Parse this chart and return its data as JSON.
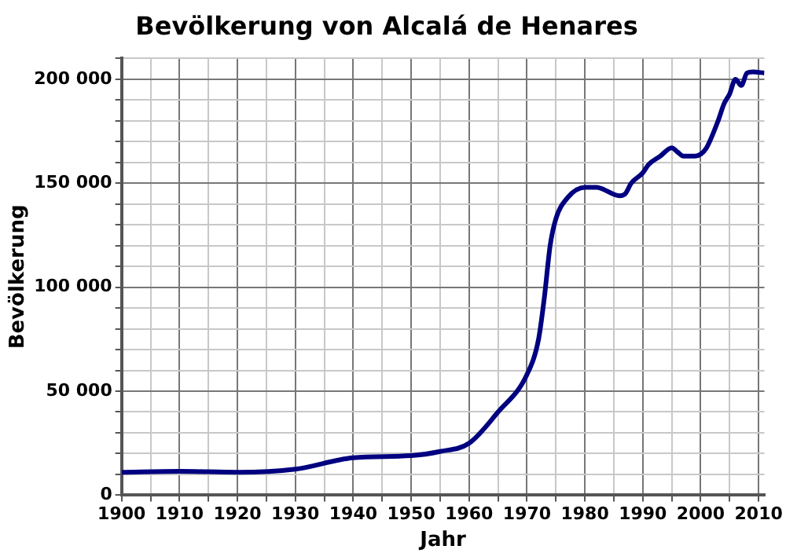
{
  "chart_data": {
    "type": "line",
    "title": "Bevölkerung von Alcalá de Henares",
    "xlabel": "Jahr",
    "ylabel": "Bevölkerung",
    "x": [
      1900,
      1910,
      1920,
      1930,
      1940,
      1950,
      1955,
      1960,
      1965,
      1970,
      1972,
      1973,
      1974,
      1975,
      1977,
      1980,
      1982,
      1986,
      1987,
      1988,
      1990,
      1991,
      1993,
      1995,
      1996,
      1997,
      1999,
      2000,
      2001,
      2003,
      2004,
      2005,
      2006,
      2007,
      2008,
      2009,
      2011
    ],
    "series": [
      {
        "color": "#000080",
        "values": [
          11000,
          11500,
          11000,
          12500,
          18000,
          19000,
          21000,
          25000,
          40000,
          58000,
          75000,
          95000,
          120000,
          133000,
          143000,
          148000,
          148000,
          144000,
          145000,
          150000,
          155000,
          159000,
          163000,
          167000,
          165000,
          163000,
          163000,
          164000,
          167000,
          180000,
          188000,
          193000,
          200000,
          197000,
          203000,
          203500,
          203000
        ]
      }
    ],
    "xlim": [
      1900,
      2011
    ],
    "xticks": [
      1900,
      {
        "value": 1905,
        "label": null
      },
      1910,
      {
        "value": 1915,
        "label": null
      },
      1920,
      {
        "value": 1925,
        "label": null
      },
      1930,
      {
        "value": 1935,
        "label": null
      },
      1940,
      {
        "value": 1945,
        "label": null
      },
      1950,
      {
        "value": 1955,
        "label": null
      },
      1960,
      {
        "value": 1965,
        "label": null
      },
      1970,
      {
        "value": 1975,
        "label": null
      },
      1980,
      {
        "value": 1985,
        "label": null
      },
      1990,
      {
        "value": 1995,
        "label": null
      },
      2000,
      {
        "value": 2005,
        "label": null
      },
      2010
    ],
    "ylim": [
      0,
      210000
    ],
    "yticks": [
      {
        "value": 0,
        "label": "0"
      },
      {
        "value": 10000,
        "label": null
      },
      {
        "value": 20000,
        "label": null
      },
      {
        "value": 30000,
        "label": null
      },
      {
        "value": 40000,
        "label": null
      },
      {
        "value": 50000,
        "label": "50 000"
      },
      {
        "value": 60000,
        "label": null
      },
      {
        "value": 70000,
        "label": null
      },
      {
        "value": 80000,
        "label": null
      },
      {
        "value": 90000,
        "label": null
      },
      {
        "value": 100000,
        "label": "100 000"
      },
      {
        "value": 110000,
        "label": null
      },
      {
        "value": 120000,
        "label": null
      },
      {
        "value": 130000,
        "label": null
      },
      {
        "value": 140000,
        "label": null
      },
      {
        "value": 150000,
        "label": "150 000"
      },
      {
        "value": 160000,
        "label": null
      },
      {
        "value": 170000,
        "label": null
      },
      {
        "value": 180000,
        "label": null
      },
      {
        "value": 190000,
        "label": null
      },
      {
        "value": 200000,
        "label": "200 000"
      },
      {
        "value": 210000,
        "label": null
      }
    ],
    "grid": true,
    "legend": false,
    "marker": "none",
    "line_style": "solid"
  }
}
